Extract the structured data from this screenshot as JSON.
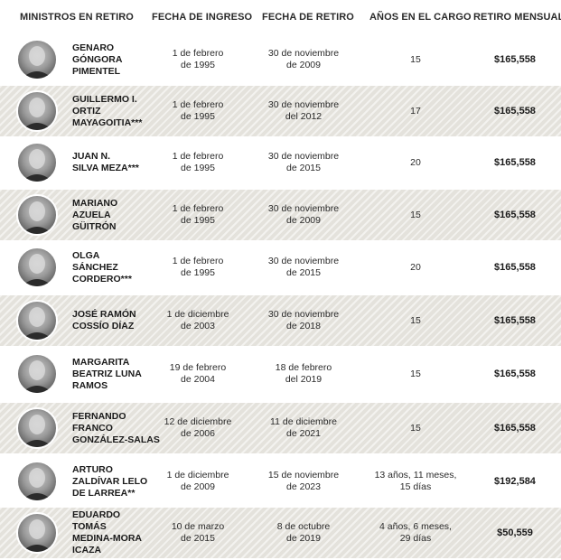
{
  "headers": {
    "ministros": "MINISTROS EN RETIRO",
    "ingreso": "FECHA DE INGRESO",
    "retiro": "FECHA DE RETIRO",
    "anios": "AÑOS EN EL CARGO",
    "mensual": "RETIRO MENSUAL"
  },
  "rows": [
    {
      "name": [
        "GENARO",
        "GÓNGORA",
        "PIMENTEL"
      ],
      "ingreso": [
        "1 de febrero",
        "de 1995"
      ],
      "retiro": [
        "30 de noviembre",
        "de 2009"
      ],
      "anios": [
        "15"
      ],
      "mensual": "$165,558"
    },
    {
      "name": [
        "GUILLERMO I.",
        "ORTIZ",
        "MAYAGOITIA***"
      ],
      "ingreso": [
        "1 de febrero",
        "de 1995"
      ],
      "retiro": [
        "30 de noviembre",
        "del 2012"
      ],
      "anios": [
        "17"
      ],
      "mensual": "$165,558"
    },
    {
      "name": [
        "JUAN N.",
        "SILVA MEZA***"
      ],
      "ingreso": [
        "1 de febrero",
        "de 1995"
      ],
      "retiro": [
        "30 de noviembre",
        "de 2015"
      ],
      "anios": [
        "20"
      ],
      "mensual": "$165,558"
    },
    {
      "name": [
        "MARIANO",
        "AZUELA",
        "GÜITRÓN"
      ],
      "ingreso": [
        "1 de febrero",
        "de 1995"
      ],
      "retiro": [
        "30 de noviembre",
        "de 2009"
      ],
      "anios": [
        "15"
      ],
      "mensual": "$165,558"
    },
    {
      "name": [
        "OLGA",
        "SÁNCHEZ",
        "CORDERO***"
      ],
      "ingreso": [
        "1 de febrero",
        "de 1995"
      ],
      "retiro": [
        "30 de noviembre",
        "de 2015"
      ],
      "anios": [
        "20"
      ],
      "mensual": "$165,558"
    },
    {
      "name": [
        "JOSÉ RAMÓN",
        "COSSÍO DÍAZ"
      ],
      "ingreso": [
        "1 de diciembre",
        "de 2003"
      ],
      "retiro": [
        "30 de noviembre",
        "de 2018"
      ],
      "anios": [
        "15"
      ],
      "mensual": "$165,558"
    },
    {
      "name": [
        "MARGARITA",
        "BEATRIZ LUNA",
        "RAMOS"
      ],
      "ingreso": [
        "19 de febrero",
        "de 2004"
      ],
      "retiro": [
        "18 de febrero",
        "del 2019"
      ],
      "anios": [
        "15"
      ],
      "mensual": "$165,558"
    },
    {
      "name": [
        "FERNANDO",
        "FRANCO",
        "GONZÁLEZ-SALAS"
      ],
      "ingreso": [
        "12 de diciembre",
        "de 2006"
      ],
      "retiro": [
        "11 de diciembre",
        "de 2021"
      ],
      "anios": [
        "15"
      ],
      "mensual": "$165,558"
    },
    {
      "name": [
        "ARTURO",
        "ZALDÍVAR LELO",
        "DE LARREA**"
      ],
      "ingreso": [
        "1 de diciembre",
        "de 2009"
      ],
      "retiro": [
        "15 de noviembre",
        "de 2023"
      ],
      "anios": [
        "13 años, 11 meses,",
        "15 días"
      ],
      "mensual": "$192,584"
    },
    {
      "name": [
        "EDUARDO",
        "TOMÁS",
        "MEDINA-MORA",
        "ICAZA"
      ],
      "ingreso": [
        "10 de marzo",
        "de 2015"
      ],
      "retiro": [
        "8 de octubre",
        "de 2019"
      ],
      "anios": [
        "4 años, 6 meses,",
        "29 días"
      ],
      "mensual": "$50,559"
    }
  ]
}
